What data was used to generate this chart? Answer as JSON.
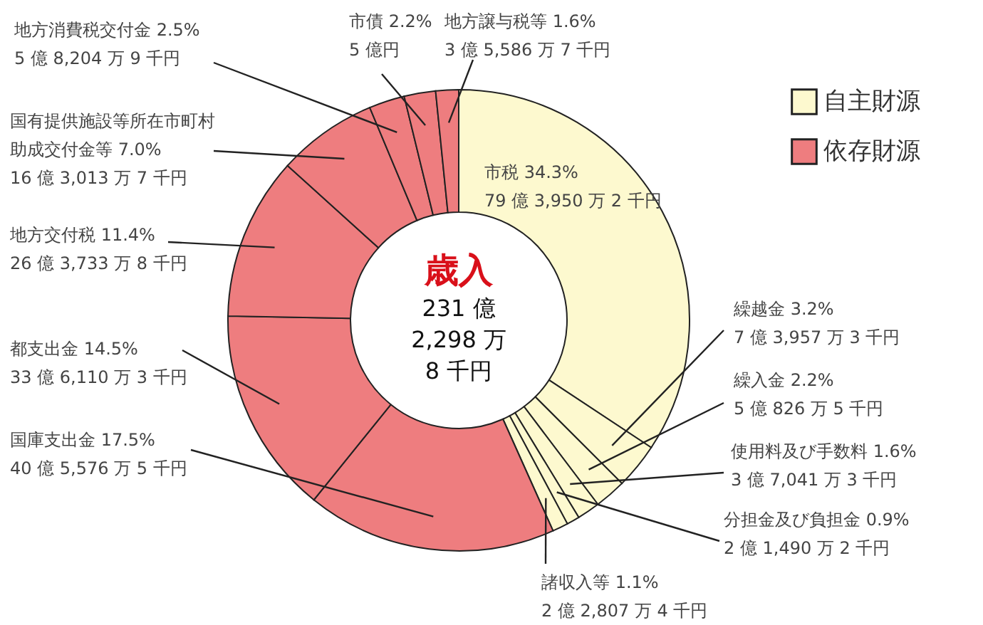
{
  "chart_data": {
    "type": "donut",
    "title": "歳入",
    "subtitle": "231 億\n2,298 万\n8 千円",
    "categories": [
      "市税",
      "繰越金",
      "繰入金",
      "使用料及び手数料",
      "分担金及び負担金",
      "諸収入等",
      "国庫支出金",
      "都支出金",
      "地方交付税",
      "国有提供施設等所在市町村助成交付金等",
      "地方消費税交付金",
      "市債",
      "地方譲与税等"
    ],
    "values": [
      34.3,
      3.2,
      2.2,
      1.6,
      0.9,
      1.1,
      17.5,
      14.5,
      11.4,
      7.0,
      2.5,
      2.2,
      1.6
    ],
    "colors": [
      "#fdf9cf",
      "#fdf9cf",
      "#fdf9cf",
      "#fdf9cf",
      "#fdf9cf",
      "#fdf9cf",
      "#ee7d7f",
      "#ee7d7f",
      "#ee7d7f",
      "#ee7d7f",
      "#ee7d7f",
      "#ee7d7f",
      "#ee7d7f"
    ],
    "value_labels": [
      "34.3%\n79 億 3,950 万 2 千円",
      "3.2%\n7 億 3,957 万 3 千円",
      "2.2%\n5 億 826 万 5 千円",
      "1.6%\n3 億 7,041 万 3 千円",
      "0.9%\n2 億 1,490 万 2 千円",
      "1.1%\n2 億 2,807 万 4 千円",
      "17.5%\n40 億 5,576 万 5 千円",
      "14.5%\n33 億 6,110 万 3 千円",
      "11.4%\n26 億 3,733 万 8 千円",
      "7.0%\n16 億 3,013 万 7 千円",
      "2.5%\n5 億 8,204 万 9 千円",
      "2.2%\n5 億円",
      "1.6%\n3 億 5,586 万 7 千円"
    ],
    "annotations": [
      "自主財源",
      "依存財源"
    ]
  }
}
